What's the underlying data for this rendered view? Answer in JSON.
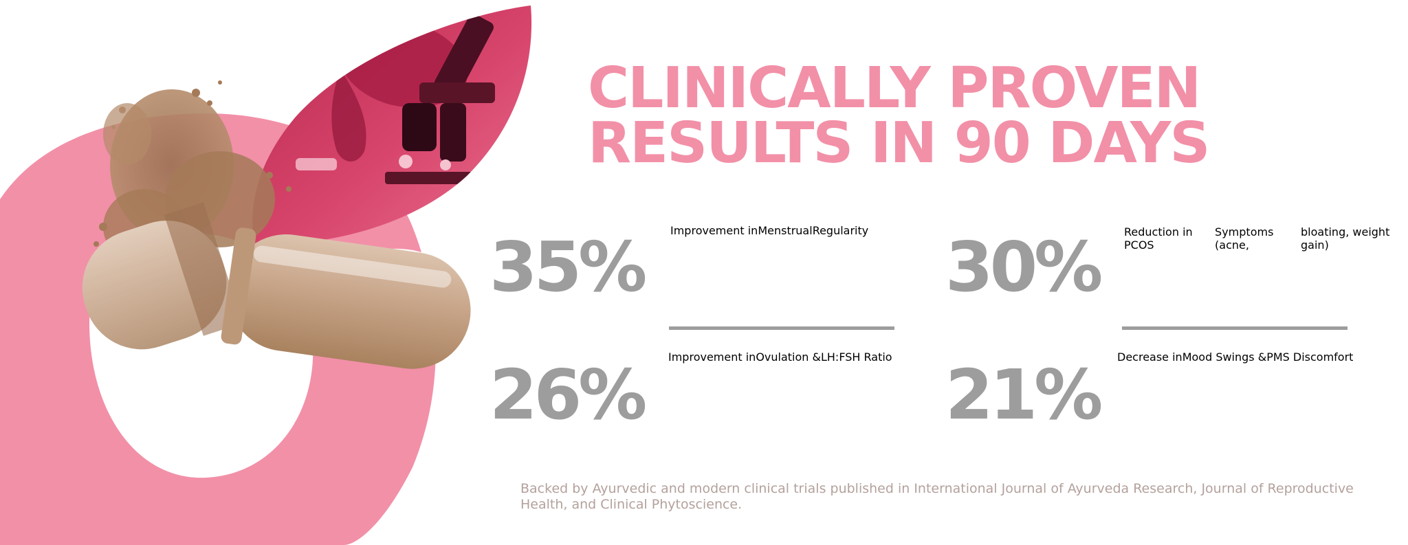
{
  "headline": {
    "line1": "CLINICALLY PROVEN",
    "line2_light": "RESULTS IN",
    "line2_bold": "90 DAYS"
  },
  "stats": [
    {
      "value": "35%",
      "lines": [
        "Improvement in",
        "Menstrual",
        "Regularity"
      ]
    },
    {
      "value": "30%",
      "lines": [
        "Reduction in PCOS",
        "Symptoms (acne,",
        "bloating, weight gain)"
      ]
    },
    {
      "value": "26%",
      "lines": [
        "Improvement in",
        "Ovulation &",
        "LH:FSH Ratio"
      ]
    },
    {
      "value": "21%",
      "lines": [
        "Decrease in",
        "Mood Swings &",
        "PMS Discomfort"
      ]
    }
  ],
  "footnote": "Backed by Ayurvedic and modern clinical trials published in International Journal of Ayurveda Research, Journal of Reproductive Health, and Clinical Phytoscience.",
  "colors": {
    "brand_pink": "#f290a8",
    "deep_pink": "#d8456c",
    "stat_grey": "#9d9d9d",
    "footnote": "#b3a19c",
    "capsule_powder": "#b38a6a"
  }
}
